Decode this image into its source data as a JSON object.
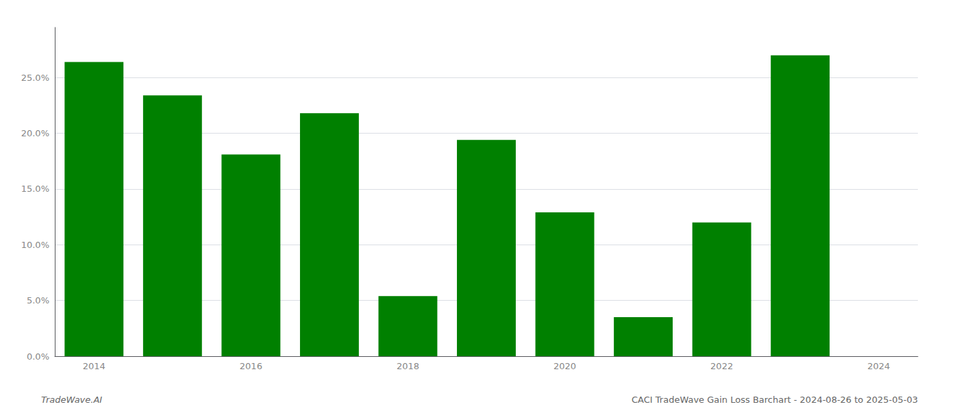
{
  "chart_data": {
    "type": "bar",
    "categories": [
      "2014",
      null,
      "2016",
      null,
      "2018",
      null,
      "2020",
      null,
      "2022",
      null,
      "2024"
    ],
    "values": [
      0.264,
      0.234,
      0.181,
      0.218,
      0.054,
      0.194,
      0.129,
      0.035,
      0.12,
      0.27,
      null
    ],
    "color": "#008000",
    "ylim": [
      0,
      0.295
    ],
    "yticks": [
      {
        "value": 0.0,
        "label": "0.0%"
      },
      {
        "value": 0.05,
        "label": "5.0%"
      },
      {
        "value": 0.1,
        "label": "10.0%"
      },
      {
        "value": 0.15,
        "label": "15.0%"
      },
      {
        "value": 0.2,
        "label": "20.0%"
      },
      {
        "value": 0.25,
        "label": "25.0%"
      }
    ],
    "grid": true,
    "annotations": [
      "TradeWave.AI",
      "CACI TradeWave Gain Loss Barchart - 2024-08-26 to 2025-05-03"
    ]
  }
}
